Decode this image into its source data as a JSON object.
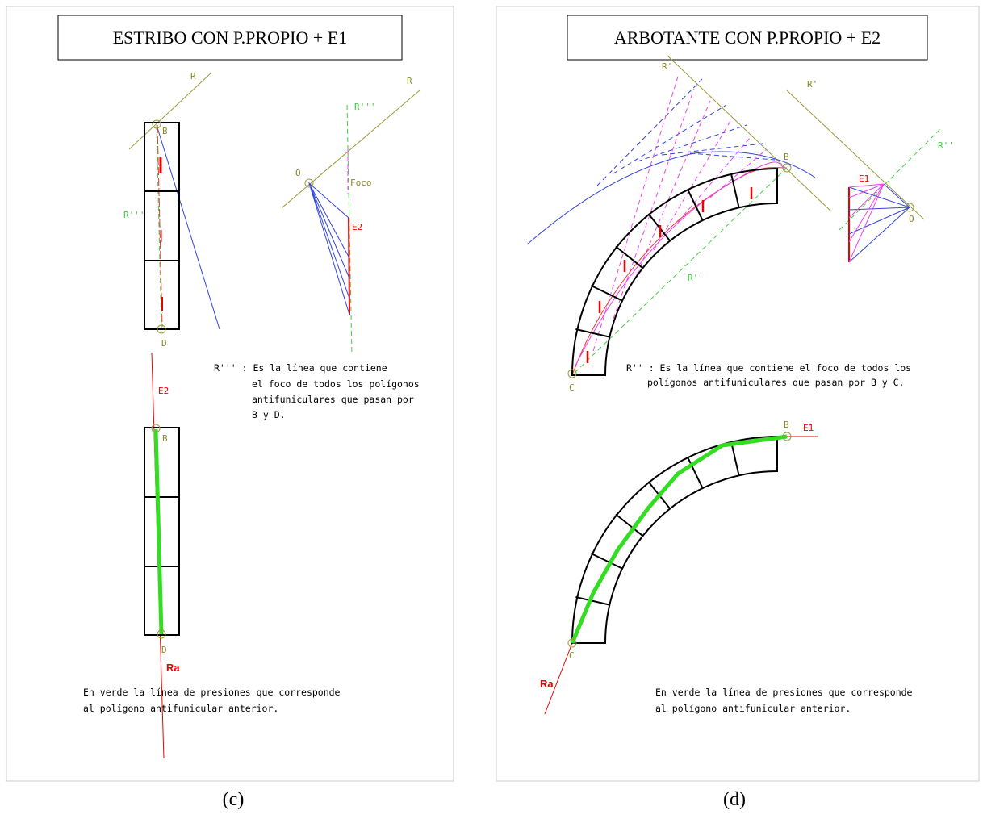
{
  "panels": [
    {
      "title": "ESTRIBO CON P.PROPIO + E1",
      "labels": [
        "R",
        "R",
        "R'''",
        "B",
        "O",
        "Foco",
        "E2",
        "R'''",
        "D",
        "E2",
        "B",
        "D",
        "Ra"
      ],
      "note": [
        "R''' : Es la línea que contiene",
        "el foco de todos los polígonos",
        "antifuniculares que pasan por",
        "B y D."
      ],
      "note2": [
        "En verde la línea de presiones que corresponde",
        "al polígono antifunicular anterior."
      ],
      "caption": "(c)"
    },
    {
      "title": "ARBOTANTE CON P.PROPIO + E2",
      "labels": [
        "R'",
        "R'",
        "B",
        "R''",
        "E1",
        "O",
        "R''",
        "C",
        "B",
        "E1",
        "C",
        "Ra"
      ],
      "note": [
        "R'' : Es la línea que contiene el foco de todos los",
        "polígonos antifuniculares que pasan por B y C."
      ],
      "note2": [
        "En verde la línea de presiones que corresponde",
        "al polígono antifunicular anterior."
      ],
      "caption": "(d)"
    }
  ]
}
